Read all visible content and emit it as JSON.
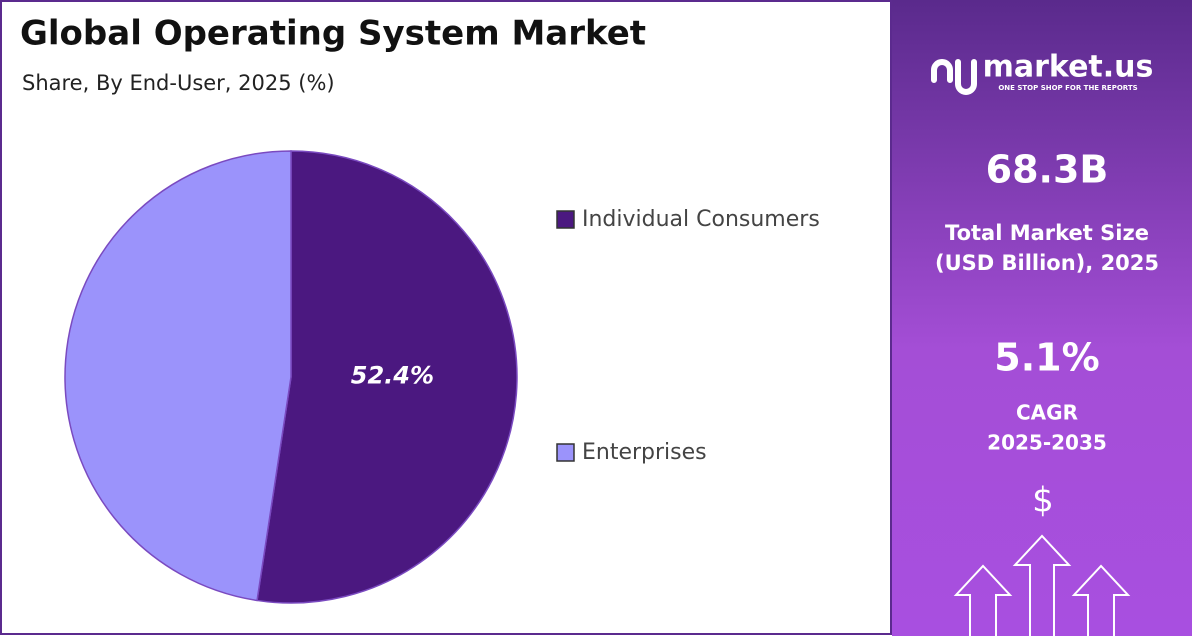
{
  "chart_data": {
    "type": "pie",
    "title": "Global Operating System Market",
    "subtitle": "Share, By End-User, 2025 (%)",
    "categories": [
      "Individual Consumers",
      "Enterprises"
    ],
    "values": [
      52.4,
      47.6
    ],
    "value_labels": [
      "52.4%",
      null
    ],
    "colors": [
      "#4b1880",
      "#9b93fb"
    ]
  },
  "side_panel": {
    "brand": "market.us",
    "tagline": "ONE STOP SHOP FOR THE REPORTS",
    "market_size": "68.3B",
    "market_size_label_1": "Total Market Size",
    "market_size_label_2": "(USD Billion), 2025",
    "cagr": "5.1%",
    "cagr_label_1": "CAGR",
    "cagr_label_2": "2025-2035",
    "currency_symbol": "$"
  }
}
